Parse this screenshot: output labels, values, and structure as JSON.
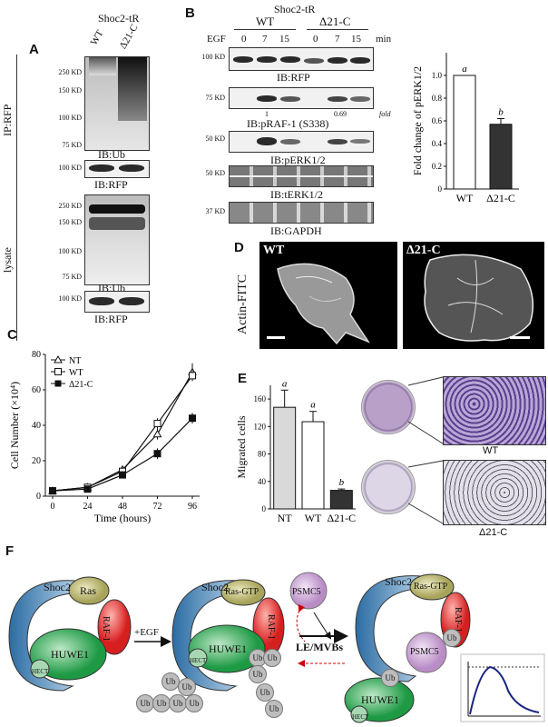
{
  "panels": {
    "A": "A",
    "B": "B",
    "C": "C",
    "D": "D",
    "E": "E",
    "F": "F"
  },
  "panel_a": {
    "header": "Shoc2-tR",
    "lanes": [
      "WT",
      "Δ21-C"
    ],
    "ip_label": "IP:RFP",
    "lysate_label": "lysate",
    "markers_top": [
      "250 KD",
      "150 KD",
      "100 KD",
      "75 KD"
    ],
    "marker_rfp": "100 KD",
    "markers_lys": [
      "250 KD",
      "150 KD",
      "100 KD",
      "75 KD"
    ],
    "marker_rfp2": "100 KD",
    "ib_ub_1": "IB:Ub",
    "ib_rfp_1": "IB:RFP",
    "ib_ub_2": "IB:Ub",
    "ib_rfp_2": "IB:RFP"
  },
  "panel_b": {
    "header": "Shoc2-tR",
    "group_wt": "WT",
    "group_mut": "Δ21-C",
    "egf": "EGF",
    "times": [
      "0",
      "7",
      "15",
      "0",
      "7",
      "15"
    ],
    "min": "min",
    "blots": [
      {
        "kd": "100 KD",
        "label": "IB:RFP"
      },
      {
        "kd": "75 KD",
        "label": "IB:pRAF-1 (S338)"
      },
      {
        "kd": "50 KD",
        "label": "IB:pERK1/2"
      },
      {
        "kd": "50 KD",
        "label": "IB:tERK1/2"
      },
      {
        "kd": "37 KD",
        "label": "IB:GAPDH"
      }
    ],
    "fold_values": [
      "1",
      "0.69"
    ],
    "fold_label": "fold"
  },
  "chart_data": [
    {
      "type": "bar",
      "id": "B-quant",
      "categories": [
        "WT",
        "Δ21-C"
      ],
      "values": [
        1.0,
        0.57
      ],
      "errors": [
        0.0,
        0.05
      ],
      "letters": [
        "a",
        "b"
      ],
      "ylabel": "Fold change of pERK1/2",
      "ylim": [
        0,
        1.2
      ],
      "yticks": [
        "0",
        "0.2",
        "0.4",
        "0.6",
        "0.8",
        "1.0"
      ],
      "colors": [
        "#ffffff",
        "#333333"
      ]
    },
    {
      "type": "line",
      "id": "C",
      "x": [
        0,
        24,
        48,
        72,
        96
      ],
      "xticks": [
        "0",
        "24",
        "48",
        "72",
        "96"
      ],
      "xlabel": "Time (hours)",
      "ylabel": "Cell Number (×10⁴)",
      "yticks": [
        "0",
        "20",
        "40",
        "60",
        "80"
      ],
      "ylim": [
        0,
        80
      ],
      "series": [
        {
          "name": "NT",
          "values": [
            3,
            5,
            15,
            35,
            70
          ],
          "err": [
            0.5,
            1,
            2,
            3,
            5
          ],
          "marker": "triangle"
        },
        {
          "name": "WT",
          "values": [
            3,
            5,
            14,
            41,
            68
          ],
          "err": [
            0.5,
            1,
            2,
            3,
            3
          ],
          "marker": "square-open"
        },
        {
          "name": "Δ21-C",
          "values": [
            3,
            4,
            12,
            24,
            44
          ],
          "err": [
            0.5,
            1,
            1,
            3,
            3
          ],
          "marker": "square-filled"
        }
      ],
      "legend": "top-left"
    },
    {
      "type": "bar",
      "id": "E",
      "categories": [
        "NT",
        "WT",
        "Δ21-C"
      ],
      "values": [
        148,
        127,
        27
      ],
      "errors": [
        25,
        15,
        2
      ],
      "letters": [
        "a",
        "a",
        "b"
      ],
      "ylabel": "Migrated cells",
      "ylim": [
        0,
        180
      ],
      "yticks": [
        "0",
        "40",
        "80",
        "120",
        "160"
      ],
      "colors": [
        "#d9d9d9",
        "#ffffff",
        "#333333"
      ]
    }
  ],
  "panel_d": {
    "wt": "WT",
    "mut": "Δ21-C",
    "ylabel": "Actin-FITC"
  },
  "panel_e": {
    "wt": "WT",
    "mut": "Δ21-C"
  },
  "panel_f": {
    "shoc2": "Shoc2",
    "ras": "Ras",
    "ras_gtp": "Ras-GTP",
    "raf1": "RAF-1",
    "huwe1": "HUWE1",
    "hect": "HECT",
    "ub": "Ub",
    "egf": "+EGF",
    "psmc5": "PSMC5",
    "lemvb": "LE/MVBs"
  }
}
